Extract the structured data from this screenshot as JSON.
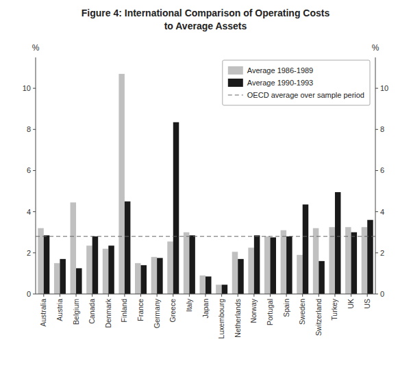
{
  "chart_data": {
    "type": "bar",
    "title": "Figure 4: International Comparison of Operating Costs",
    "subtitle": "to Average Assets",
    "categories": [
      "Australia",
      "Austria",
      "Belgium",
      "Canada",
      "Denmark",
      "Finland",
      "France",
      "Germany",
      "Greece",
      "Italy",
      "Japan",
      "Luxembourg",
      "Netherlands",
      "Norway",
      "Portugal",
      "Spain",
      "Sweden",
      "Switzerland",
      "Turkey",
      "UK",
      "US"
    ],
    "series": [
      {
        "name": "Average 1986-1989",
        "color": "#c0c0c0",
        "values": [
          3.2,
          1.5,
          4.45,
          2.35,
          2.2,
          10.7,
          1.5,
          1.8,
          2.55,
          3.0,
          0.9,
          0.45,
          2.05,
          2.25,
          2.8,
          3.1,
          1.9,
          3.2,
          3.25,
          3.25,
          3.25
        ]
      },
      {
        "name": "Average 1990-1993",
        "color": "#1a1a1a",
        "values": [
          2.85,
          1.7,
          1.25,
          2.8,
          2.35,
          4.5,
          1.4,
          1.75,
          8.35,
          2.85,
          0.85,
          0.45,
          1.7,
          2.85,
          2.75,
          2.8,
          4.35,
          1.6,
          4.95,
          3.0,
          3.6
        ]
      }
    ],
    "reference_lines": [
      {
        "name": "OECD average over sample period",
        "value": 2.8,
        "color": "#666666",
        "line_style": "dashed"
      }
    ],
    "ylabel": "%",
    "y2label": "%",
    "ylim": [
      0,
      11.5
    ],
    "yticks": [
      0,
      2,
      4,
      6,
      8,
      10
    ],
    "y2lim": [
      0,
      11.5
    ],
    "y2ticks": [
      0,
      2,
      4,
      6,
      8,
      10
    ],
    "grid": false,
    "legend": "upper right"
  }
}
